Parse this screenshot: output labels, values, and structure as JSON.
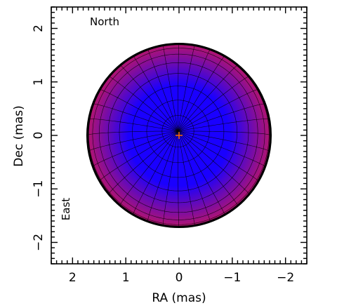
{
  "chart_data": {
    "type": "scatter",
    "xlabel": "RA (mas)",
    "ylabel": "Dec (mas)",
    "xlim": [
      2.4,
      -2.4
    ],
    "ylim": [
      -2.4,
      2.4
    ],
    "x_ticks": [
      2,
      1,
      0,
      -1,
      -2
    ],
    "y_ticks": [
      -2,
      -1,
      0,
      1,
      2
    ],
    "x_tick_labels": [
      "2",
      "1",
      "0",
      "−1",
      "−2"
    ],
    "y_tick_labels": [
      "−2",
      "−1",
      "0",
      "1",
      "2"
    ],
    "annotations": {
      "north": "North",
      "east": "East"
    },
    "stellar_disk": {
      "center": [
        0,
        0
      ],
      "radius_mas": 1.72,
      "pole_position": [
        0.02,
        0.08
      ],
      "grid": {
        "meridians": 36,
        "parallels": 9
      },
      "colors": {
        "center": "#1a00ff",
        "limb": "#b4146e",
        "outline": "#000000"
      }
    },
    "marker": {
      "x": 0,
      "y": 0,
      "symbol": "+",
      "color": "#ff6a00"
    }
  }
}
